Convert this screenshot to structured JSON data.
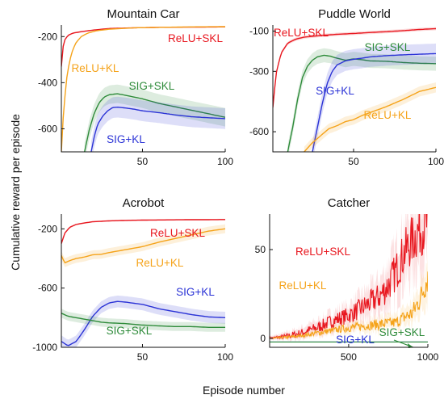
{
  "figure": {
    "ylabel": "Cumulative  reward per episode",
    "xlabel": "Episode number"
  },
  "chart_data": [
    {
      "type": "line",
      "title": "Mountain Car",
      "xlim": [
        1,
        100
      ],
      "ylim": [
        -700,
        -150
      ],
      "xticks": [
        50,
        100
      ],
      "xtick_labels": [
        "50",
        "100"
      ],
      "yticks": [
        -200,
        -400,
        -600
      ],
      "ytick_labels": [
        "-200",
        "-400",
        "-600"
      ],
      "series": [
        {
          "name": "ReLU+SKL",
          "color": "#e8171f",
          "x": [
            1,
            2,
            3,
            5,
            8,
            12,
            20,
            30,
            45,
            60,
            80,
            100
          ],
          "y": [
            -330,
            -245,
            -215,
            -195,
            -185,
            -180,
            -172,
            -165,
            -162,
            -160,
            -159,
            -158
          ],
          "band": [
            3,
            3,
            3,
            3,
            3,
            3,
            2,
            2,
            2,
            2,
            2,
            2
          ]
        },
        {
          "name": "ReLU+KL",
          "color": "#f5a31a",
          "x": [
            1,
            2,
            4,
            6,
            8,
            10,
            13,
            17,
            22,
            30,
            45,
            60,
            80,
            100
          ],
          "y": [
            -700,
            -560,
            -390,
            -305,
            -255,
            -225,
            -200,
            -185,
            -175,
            -168,
            -162,
            -160,
            -158,
            -157
          ],
          "band": [
            0,
            0,
            0,
            0,
            0,
            0,
            0,
            0,
            0,
            0,
            0,
            0,
            0,
            0
          ]
        },
        {
          "name": "SIG+SKL",
          "color": "#2e8b3a",
          "x": [
            15,
            18,
            21,
            24,
            27,
            30,
            35,
            40,
            50,
            60,
            70,
            80,
            90,
            100
          ],
          "y": [
            -700,
            -600,
            -530,
            -485,
            -462,
            -452,
            -448,
            -455,
            -470,
            -490,
            -505,
            -520,
            -535,
            -550
          ],
          "band": [
            40,
            40,
            40,
            40,
            40,
            40,
            40,
            40,
            40,
            40,
            40,
            40,
            40,
            40
          ]
        },
        {
          "name": "SIG+KL",
          "color": "#2b33d6",
          "x": [
            19,
            21,
            23,
            26,
            29,
            32,
            35,
            40,
            45,
            50,
            60,
            70,
            80,
            90,
            100
          ],
          "y": [
            -700,
            -630,
            -580,
            -545,
            -522,
            -508,
            -506,
            -510,
            -515,
            -522,
            -530,
            -540,
            -548,
            -552,
            -556
          ],
          "band": [
            45,
            45,
            45,
            45,
            45,
            45,
            45,
            45,
            45,
            45,
            45,
            45,
            45,
            45,
            45
          ]
        }
      ]
    },
    {
      "type": "line",
      "title": "Puddle World",
      "xlim": [
        1,
        100
      ],
      "ylim": [
        -700,
        -70
      ],
      "xticks": [
        50,
        100
      ],
      "xtick_labels": [
        "50",
        "100"
      ],
      "yticks": [
        -100,
        -300,
        -600
      ],
      "ytick_labels": [
        "-100",
        "-300",
        "-600"
      ],
      "series": [
        {
          "name": "ReLU+SKL",
          "color": "#e8171f",
          "x": [
            1,
            3,
            6,
            10,
            15,
            20,
            30,
            40,
            50,
            60,
            70,
            80,
            90,
            100
          ],
          "y": [
            -480,
            -310,
            -210,
            -160,
            -140,
            -130,
            -122,
            -116,
            -112,
            -107,
            -103,
            -98,
            -92,
            -88
          ],
          "band": [
            8,
            8,
            8,
            8,
            8,
            8,
            8,
            8,
            8,
            8,
            8,
            8,
            8,
            8
          ]
        },
        {
          "name": "SIG+SKL",
          "color": "#2e8b3a",
          "x": [
            10,
            13,
            16,
            19,
            22,
            25,
            28,
            32,
            36,
            40,
            45,
            50,
            55,
            60,
            70,
            80,
            90,
            100
          ],
          "y": [
            -700,
            -580,
            -440,
            -330,
            -275,
            -245,
            -228,
            -220,
            -225,
            -235,
            -245,
            -238,
            -242,
            -248,
            -250,
            -256,
            -260,
            -262
          ],
          "band": [
            35,
            35,
            35,
            35,
            35,
            35,
            35,
            35,
            35,
            35,
            35,
            35,
            35,
            35,
            35,
            35,
            35,
            35
          ]
        },
        {
          "name": "SIG+KL",
          "color": "#2b33d6",
          "x": [
            25,
            28,
            31,
            34,
            37,
            40,
            45,
            50,
            55,
            60,
            70,
            80,
            90,
            100
          ],
          "y": [
            -700,
            -580,
            -460,
            -360,
            -300,
            -268,
            -248,
            -240,
            -235,
            -228,
            -222,
            -218,
            -215,
            -212
          ],
          "band": [
            50,
            50,
            50,
            50,
            50,
            50,
            50,
            50,
            50,
            50,
            50,
            50,
            50,
            50
          ]
        },
        {
          "name": "ReLU+KL",
          "color": "#f5a31a",
          "x": [
            20,
            25,
            30,
            35,
            40,
            45,
            50,
            55,
            60,
            70,
            80,
            90,
            100
          ],
          "y": [
            -700,
            -655,
            -620,
            -585,
            -570,
            -550,
            -540,
            -520,
            -505,
            -475,
            -440,
            -400,
            -380
          ],
          "band": [
            25,
            25,
            25,
            25,
            25,
            25,
            25,
            25,
            25,
            25,
            25,
            25,
            25
          ]
        }
      ]
    },
    {
      "type": "line",
      "title": "Acrobot",
      "xlim": [
        1,
        100
      ],
      "ylim": [
        -1000,
        -100
      ],
      "xticks": [
        50,
        100
      ],
      "xtick_labels": [
        "50",
        "100"
      ],
      "yticks": [
        -200,
        -600,
        -1000
      ],
      "ytick_labels": [
        "-200",
        "-600",
        "-1000"
      ],
      "series": [
        {
          "name": "ReLU+SKL",
          "color": "#e8171f",
          "x": [
            1,
            3,
            6,
            10,
            15,
            20,
            30,
            40,
            50,
            60,
            70,
            80,
            90,
            100
          ],
          "y": [
            -300,
            -230,
            -190,
            -170,
            -160,
            -152,
            -146,
            -143,
            -141,
            -140,
            -139,
            -138,
            -138,
            -137
          ],
          "band": [
            10,
            8,
            6,
            5,
            5,
            5,
            5,
            5,
            5,
            5,
            5,
            5,
            5,
            5
          ]
        },
        {
          "name": "ReLU+KL",
          "color": "#f5a31a",
          "x": [
            1,
            3,
            6,
            10,
            15,
            20,
            25,
            30,
            40,
            50,
            60,
            70,
            80,
            90,
            100
          ],
          "y": [
            -380,
            -430,
            -415,
            -400,
            -390,
            -375,
            -372,
            -360,
            -340,
            -320,
            -290,
            -265,
            -240,
            -215,
            -200
          ],
          "band": [
            30,
            30,
            30,
            30,
            30,
            30,
            30,
            30,
            30,
            30,
            30,
            30,
            30,
            30,
            30
          ]
        },
        {
          "name": "SIG+KL",
          "color": "#2b33d6",
          "x": [
            1,
            5,
            10,
            15,
            20,
            25,
            30,
            35,
            40,
            50,
            60,
            70,
            80,
            90,
            100
          ],
          "y": [
            -960,
            -990,
            -960,
            -880,
            -790,
            -730,
            -700,
            -690,
            -695,
            -710,
            -740,
            -760,
            -780,
            -795,
            -800
          ],
          "band": [
            40,
            40,
            40,
            40,
            40,
            40,
            40,
            40,
            40,
            40,
            40,
            40,
            40,
            40,
            40
          ]
        },
        {
          "name": "SIG+SKL",
          "color": "#2e8b3a",
          "x": [
            1,
            5,
            10,
            15,
            20,
            25,
            30,
            40,
            50,
            60,
            70,
            80,
            90,
            100
          ],
          "y": [
            -770,
            -790,
            -800,
            -810,
            -820,
            -830,
            -835,
            -840,
            -850,
            -855,
            -860,
            -860,
            -865,
            -865
          ],
          "band": [
            30,
            30,
            30,
            30,
            30,
            30,
            30,
            30,
            30,
            30,
            30,
            30,
            30,
            30
          ]
        }
      ]
    },
    {
      "type": "line",
      "title": "Catcher",
      "xlim": [
        1,
        1000
      ],
      "ylim": [
        -5,
        70
      ],
      "xticks": [
        500,
        1000
      ],
      "xtick_labels": [
        "500",
        "1000"
      ],
      "yticks": [
        50,
        0
      ],
      "ytick_labels": [
        "50",
        "0"
      ],
      "noisy": true,
      "series": [
        {
          "name": "ReLU+SKL",
          "color": "#e8171f",
          "x": [
            1,
            100,
            200,
            300,
            400,
            500,
            600,
            700,
            750,
            800,
            850,
            900,
            950,
            1000
          ],
          "y": [
            0,
            1,
            3,
            6,
            10,
            13,
            18,
            24,
            30,
            38,
            48,
            55,
            62,
            65
          ],
          "band": [
            1,
            2,
            3,
            4,
            5,
            6,
            8,
            10,
            12,
            14,
            16,
            18,
            20,
            20
          ]
        },
        {
          "name": "ReLU+KL",
          "color": "#f5a31a",
          "x": [
            1,
            100,
            200,
            300,
            400,
            500,
            600,
            700,
            800,
            850,
            900,
            950,
            1000
          ],
          "y": [
            0,
            0.5,
            1.5,
            3,
            4.5,
            6,
            7,
            8,
            9,
            12,
            14,
            22,
            35
          ],
          "band": [
            0.5,
            1,
            1,
            2,
            2,
            3,
            3,
            4,
            4,
            5,
            6,
            8,
            12
          ]
        },
        {
          "name": "SIG+KL",
          "color": "#2b33d6",
          "x": [
            1,
            500,
            1000
          ],
          "y": [
            -2,
            -2,
            -2
          ],
          "band": [
            0,
            0,
            0
          ]
        },
        {
          "name": "SIG+SKL",
          "color": "#2e8b3a",
          "x": [
            1,
            500,
            1000
          ],
          "y": [
            -2,
            -2,
            -2
          ],
          "band": [
            0,
            0,
            0
          ]
        }
      ]
    }
  ]
}
